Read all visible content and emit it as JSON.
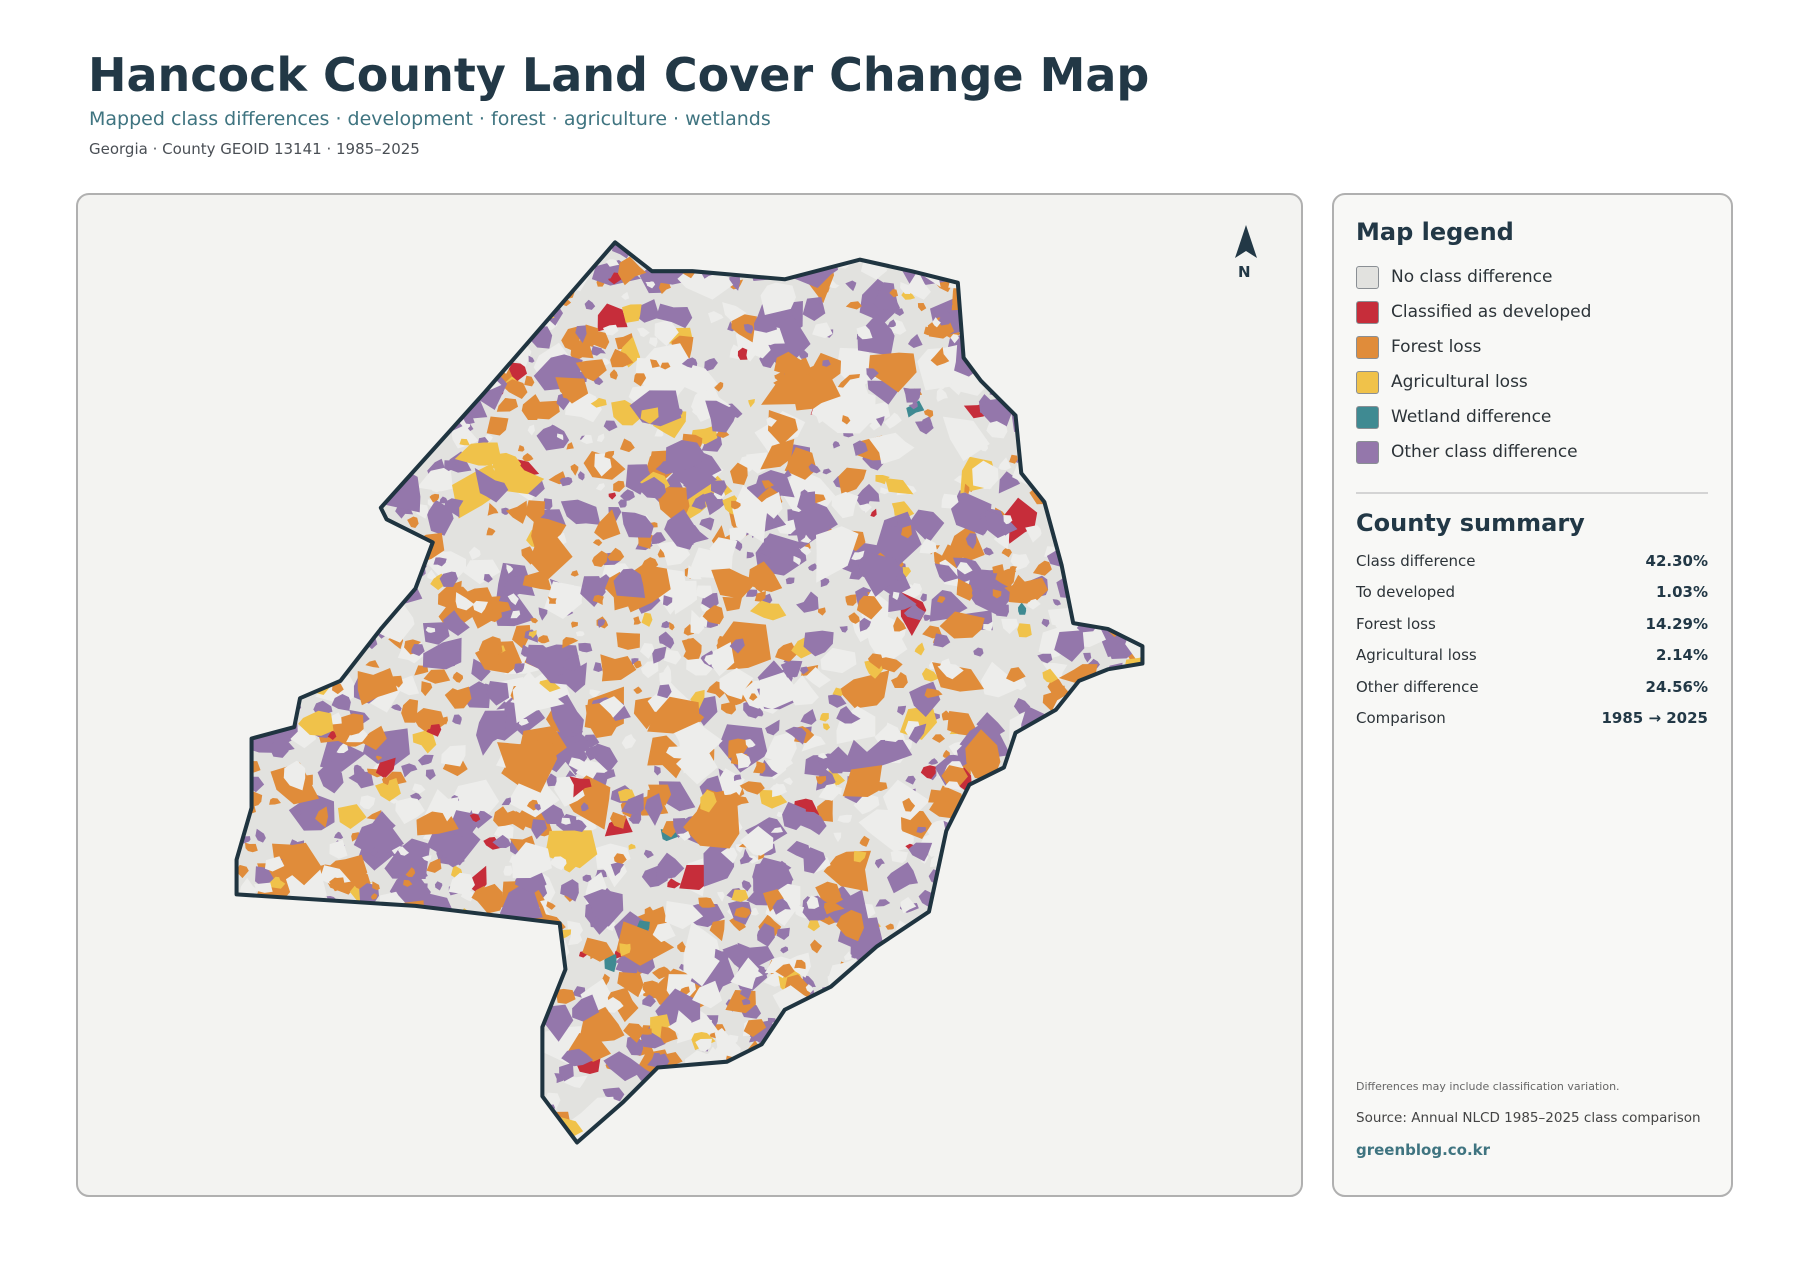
{
  "header": {
    "title": "Hancock County Land Cover Change Map",
    "subtitle": "Mapped class differences · development · forest · agriculture · wetlands",
    "meta": "Georgia · County GEOID 13141 · 1985–2025"
  },
  "map": {
    "north_label": "N"
  },
  "legend": {
    "title": "Map legend",
    "items": [
      {
        "label": "No class difference",
        "color": "#e2e2df"
      },
      {
        "label": "Classified as developed",
        "color": "#c62d3a"
      },
      {
        "label": "Forest loss",
        "color": "#e08c3a"
      },
      {
        "label": "Agricultural loss",
        "color": "#f0c24a"
      },
      {
        "label": "Wetland difference",
        "color": "#3f8a92"
      },
      {
        "label": "Other class difference",
        "color": "#9477ab"
      }
    ]
  },
  "summary": {
    "title": "County summary",
    "rows": [
      {
        "label": "Class difference",
        "value": "42.30%"
      },
      {
        "label": "To developed",
        "value": "1.03%"
      },
      {
        "label": "Forest loss",
        "value": "14.29%"
      },
      {
        "label": "Agricultural loss",
        "value": "2.14%"
      },
      {
        "label": "Other difference",
        "value": "24.56%"
      },
      {
        "label": "Comparison",
        "value": "1985 → 2025"
      }
    ]
  },
  "notes": {
    "caveat": "Differences may include classification variation.",
    "source": "Source: Annual NLCD 1985–2025 class comparison",
    "site": "greenblog.co.kr"
  }
}
